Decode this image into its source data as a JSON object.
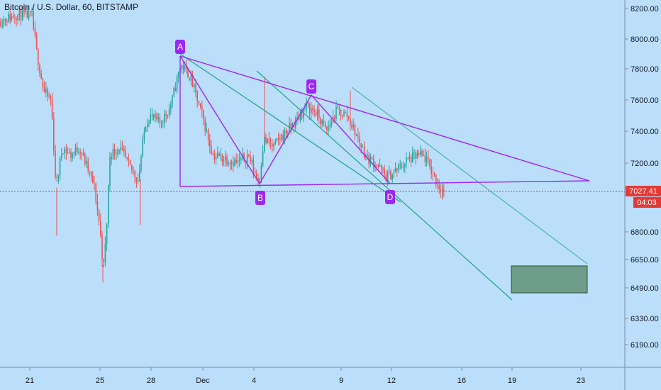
{
  "header": {
    "title": "Bitcoin / U.S. Dollar, 60, BITSTAMP"
  },
  "colors": {
    "background": "#bbdefb",
    "up_candle": "#26a69a",
    "down_candle": "#ef5350",
    "pattern_line": "#9c27f0",
    "channel_line": "#1fa38a",
    "target_box": "#6e9e8a",
    "price_line": "#e53935",
    "axis_border": "#7a8ea5"
  },
  "chart_data": {
    "type": "candlestick",
    "title": "Bitcoin / U.S. Dollar, 60, BITSTAMP",
    "ylim": [
      6110,
      8240
    ],
    "y_ticks": [
      "8200.00",
      "8000.00",
      "7800.00",
      "7600.00",
      "7400.00",
      "7200.00",
      "6800.00",
      "6650.00",
      "6490.00",
      "6330.00",
      "6190.00"
    ],
    "x_ticks": [
      "21",
      "25",
      "28",
      "Dec",
      "4",
      "9",
      "12",
      "16",
      "19",
      "23"
    ],
    "last_price": "7027.41",
    "countdown": "04:03",
    "pattern_points": [
      {
        "label": "A",
        "price": 7880
      },
      {
        "label": "B",
        "price": 7070
      },
      {
        "label": "C",
        "price": 7620
      },
      {
        "label": "D",
        "price": 7070
      }
    ],
    "target_zone": {
      "top": 6620,
      "bottom": 6470
    },
    "grid": false
  }
}
